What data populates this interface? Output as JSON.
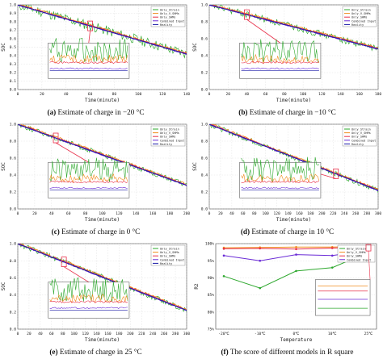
{
  "figure": {
    "series_legend": [
      "Only_Strain",
      "Only_V_SHMs",
      "Only_SHMs",
      "Combined Input",
      "Reality"
    ],
    "series_colors": {
      "Only_Strain": "#2ea82e",
      "Only_V_SHMs": "#f08a1c",
      "Only_SHMs": "#e8304a",
      "Combined Input": "#6a2bd6",
      "Reality": "#1a1aa8"
    },
    "grid": true,
    "legend_position": "top-right"
  },
  "chart_data": [
    {
      "id": "a",
      "type": "line",
      "caption_letter": "(a)",
      "caption_text": " Estimate of charge in −20 °C",
      "xlabel": "Time(minute)",
      "ylabel": "SOC",
      "xlim": [
        0,
        140
      ],
      "ylim": [
        0,
        1.0
      ],
      "xticks": [
        0,
        20,
        40,
        60,
        80,
        100,
        120,
        140
      ],
      "yticks": [
        0,
        0.1,
        0.2,
        0.3,
        0.4,
        0.5,
        0.6,
        0.7,
        0.8,
        0.9,
        1.0
      ],
      "ytick_labels": [
        "0.0",
        "0.1",
        "0.2",
        "0.3",
        "0.4",
        "0.5",
        "0.6",
        "0.7",
        "0.8",
        "0.9",
        "1.0"
      ],
      "start_soc": 1.0,
      "end_soc": 0.42,
      "noise": 0.06,
      "inset": true,
      "zoom_at": 60
    },
    {
      "id": "b",
      "type": "line",
      "caption_letter": "(b)",
      "caption_text": " Estimate of charge in −10 °C",
      "xlabel": "Time(minute)",
      "ylabel": "SOC",
      "xlim": [
        0,
        180
      ],
      "ylim": [
        0,
        1.0
      ],
      "xticks": [
        0,
        20,
        40,
        60,
        80,
        100,
        120,
        140,
        160,
        180
      ],
      "yticks": [
        0,
        0.2,
        0.4,
        0.6,
        0.8,
        1.0
      ],
      "ytick_labels": [
        "0.0",
        "0.2",
        "0.4",
        "0.6",
        "0.8",
        "1.0"
      ],
      "start_soc": 1.0,
      "end_soc": 0.48,
      "noise": 0.04,
      "inset": true,
      "zoom_at": 40
    },
    {
      "id": "c",
      "type": "line",
      "caption_letter": "(c)",
      "caption_text": " Estimate of charge in 0 °C",
      "xlabel": "Time(minute)",
      "ylabel": "SOC",
      "xlim": [
        0,
        200
      ],
      "ylim": [
        0,
        1.0
      ],
      "xticks": [
        0,
        20,
        40,
        60,
        80,
        100,
        120,
        140,
        160,
        180,
        200
      ],
      "yticks": [
        0,
        0.2,
        0.4,
        0.6,
        0.8,
        1.0
      ],
      "ytick_labels": [
        "0.0",
        "0.2",
        "0.4",
        "0.6",
        "0.8",
        "1.0"
      ],
      "start_soc": 1.0,
      "end_soc": 0.28,
      "noise": 0.03,
      "inset": true,
      "zoom_at": 45
    },
    {
      "id": "d",
      "type": "line",
      "caption_letter": "(d)",
      "caption_text": " Estimate of charge in 10 °C",
      "xlabel": "Time(minute)",
      "ylabel": "SOC",
      "xlim": [
        0,
        300
      ],
      "ylim": [
        0,
        1.0
      ],
      "xticks": [
        0,
        20,
        40,
        60,
        80,
        100,
        120,
        140,
        160,
        180,
        200,
        220,
        240,
        260,
        280,
        300
      ],
      "yticks": [
        0,
        0.2,
        0.4,
        0.6,
        0.8,
        1.0
      ],
      "ytick_labels": [
        "0.0",
        "0.2",
        "0.4",
        "0.6",
        "0.8",
        "1.0"
      ],
      "start_soc": 1.0,
      "end_soc": 0.22,
      "noise": 0.03,
      "inset": true,
      "zoom_at": 225
    },
    {
      "id": "e",
      "type": "line",
      "caption_letter": "(e)",
      "caption_text": " Estimate of charge in 25 °C",
      "xlabel": "Time(minute)",
      "ylabel": "SOC",
      "xlim": [
        0,
        300
      ],
      "ylim": [
        0,
        1.0
      ],
      "xticks": [
        0,
        20,
        40,
        60,
        80,
        100,
        120,
        140,
        160,
        180,
        200,
        220,
        240,
        260,
        280,
        300
      ],
      "yticks": [
        0,
        0.2,
        0.4,
        0.6,
        0.8,
        1.0
      ],
      "ytick_labels": [
        "0.0",
        "0.2",
        "0.4",
        "0.6",
        "0.8",
        "1.0"
      ],
      "start_soc": 1.0,
      "end_soc": 0.22,
      "noise": 0.03,
      "inset": true,
      "zoom_at": 82
    },
    {
      "id": "f",
      "type": "line",
      "caption_letter": "(f)",
      "caption_text": " The score of different models in R square",
      "xlabel": "Temperature",
      "ylabel": "R2",
      "categories": [
        "-20℃",
        "-10℃",
        "0℃",
        "10℃",
        "25℃"
      ],
      "ylim": [
        75,
        100
      ],
      "yticks": [
        75,
        80,
        85,
        90,
        95,
        100
      ],
      "ytick_labels": [
        "75%",
        "80%",
        "85%",
        "90%",
        "95%",
        "100%"
      ],
      "series": [
        {
          "name": "Only_Strain",
          "values": [
            90.5,
            87.0,
            92.0,
            93.0,
            97.5
          ]
        },
        {
          "name": "Only_V_SHMs",
          "values": [
            98.8,
            98.9,
            99.0,
            99.0,
            99.2
          ]
        },
        {
          "name": "Only_SHMs",
          "values": [
            98.5,
            98.6,
            98.4,
            98.7,
            99.0
          ]
        },
        {
          "name": "Combined Input",
          "values": [
            96.5,
            95.0,
            96.8,
            96.5,
            98.0
          ]
        }
      ],
      "legend": [
        "Only_Strain",
        "Only_V_SHMs",
        "Only_SHMs",
        "Combined Input"
      ],
      "inset": true
    }
  ]
}
